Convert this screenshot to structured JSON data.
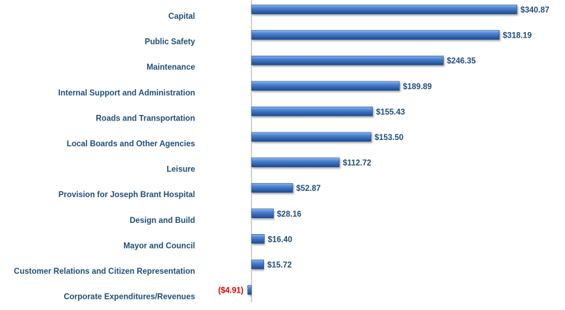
{
  "chart_data": {
    "type": "bar",
    "orientation": "horizontal",
    "categories": [
      "Capital",
      "Public Safety",
      "Maintenance",
      "Internal Support and Administration",
      "Roads and Transportation",
      "Local Boards and Other Agencies",
      "Leisure",
      "Provision for Joseph Brant Hospital",
      "Design and Build",
      "Mayor and Council",
      "Customer Relations and Citizen Representation",
      "Corporate Expenditures/Revenues"
    ],
    "values": [
      340.87,
      318.19,
      246.35,
      189.89,
      155.43,
      153.5,
      112.72,
      52.87,
      28.16,
      16.4,
      15.72,
      -4.91
    ],
    "data_labels": [
      "$340.87",
      "$318.19",
      "$246.35",
      "$189.89",
      "$155.43",
      "$153.50",
      "$112.72",
      "$52.87",
      "$28.16",
      "$16.40",
      "$15.72",
      "($4.91)"
    ],
    "title": "",
    "xlabel": "",
    "ylabel": "",
    "xlim": [
      -4.91,
      340.87
    ],
    "grid": false,
    "legend": "none",
    "colors": {
      "bar_light": "#6f9ee0",
      "bar_main": "#3f77c9",
      "bar_dark": "#1d4a8f",
      "label_text": "#1f4e79",
      "negative_text": "#e00000",
      "axis_line": "#a6a6a6"
    }
  }
}
